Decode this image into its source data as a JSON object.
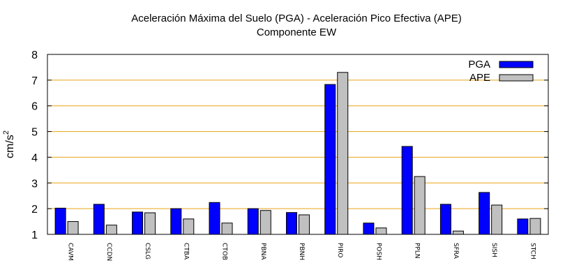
{
  "chart_data": {
    "type": "bar",
    "title": "Aceleración Máxima del Suelo (PGA) -  Aceleración Pico Efectiva (APE)",
    "subtitle": "Componente EW",
    "ylabel": "cm/s",
    "ylabel_superscript": "2",
    "xlabel": "",
    "ylim": [
      1,
      8
    ],
    "yticks": [
      1,
      2,
      3,
      4,
      5,
      6,
      7,
      8
    ],
    "grid": true,
    "grid_color": "#e8a317",
    "legend_position": "top-right",
    "categories": [
      "CAVM",
      "CCDN",
      "CSLG",
      "CTBA",
      "CTOB",
      "PBNA",
      "PBNH",
      "PIRO",
      "POSH",
      "PPLN",
      "SFRA",
      "SISH",
      "STCH"
    ],
    "series": [
      {
        "name": "PGA",
        "color": "#0000ff",
        "values": [
          2.02,
          2.17,
          1.87,
          2.0,
          2.24,
          2.0,
          1.85,
          6.83,
          1.44,
          4.42,
          2.17,
          2.63,
          1.6
        ]
      },
      {
        "name": "APE",
        "color": "#c0c0c0",
        "values": [
          1.5,
          1.36,
          1.84,
          1.6,
          1.44,
          1.93,
          1.76,
          7.3,
          1.25,
          3.25,
          1.13,
          2.14,
          1.62
        ]
      }
    ]
  }
}
